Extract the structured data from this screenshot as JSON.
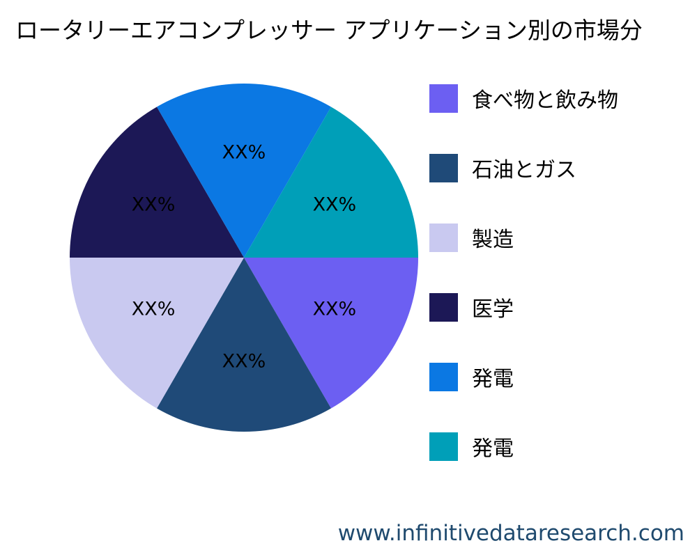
{
  "chart_data": {
    "type": "pie",
    "title": "ロータリーエアコンプレッサー アプリケーション別の市場分",
    "categories": [
      "食べ物と飲み物",
      "石油とガス",
      "製造",
      "医学",
      "発電",
      "発電"
    ],
    "values": [
      16.67,
      16.67,
      16.67,
      16.67,
      16.67,
      16.67
    ],
    "data_labels": [
      "XX%",
      "XX%",
      "XX%",
      "XX%",
      "XX%",
      "XX%"
    ],
    "colors": [
      "#6c5ff2",
      "#1f4a78",
      "#c9c9f0",
      "#1c1856",
      "#0b78e3",
      "#009fb8"
    ],
    "legend_position": "right"
  },
  "watermark": "www.infinitivedataresearch.com"
}
